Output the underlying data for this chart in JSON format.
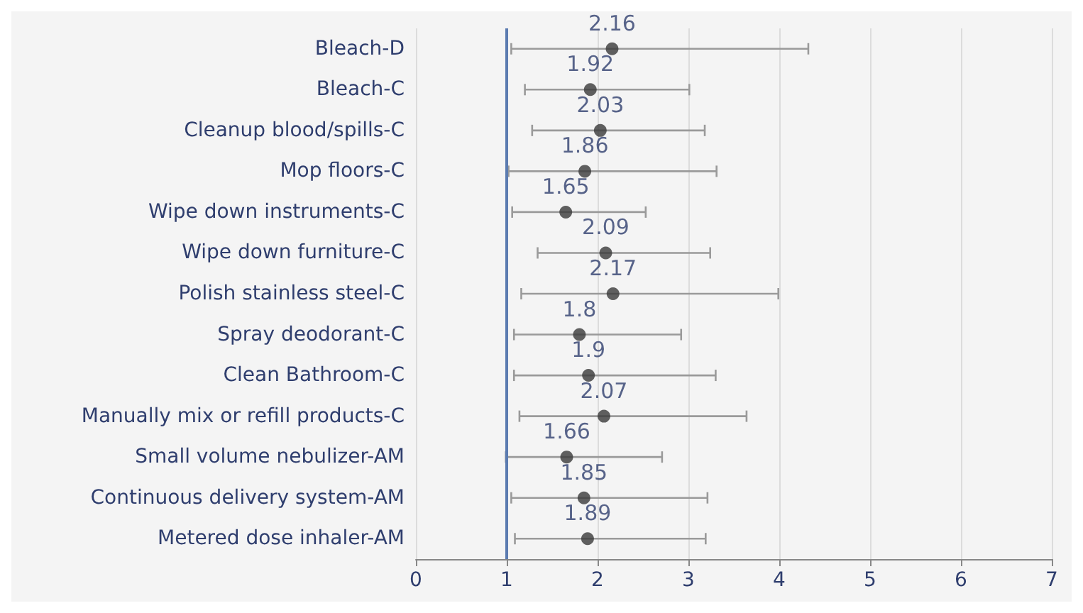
{
  "chart_data": {
    "type": "scatter",
    "orientation": "horizontal",
    "categories": [
      "Bleach-D",
      "Bleach-C",
      "Cleanup blood/spills-C",
      "Mop floors-C",
      "Wipe down instruments-C",
      "Wipe down furniture-C",
      "Polish stainless steel-C",
      "Spray deodorant-C",
      "Clean Bathroom-C",
      "Manually mix or refill products-C",
      "Small volume nebulizer-AM",
      "Continuous delivery system-AM",
      "Metered dose inhaler-AM"
    ],
    "values": [
      2.16,
      1.92,
      2.03,
      1.86,
      1.65,
      2.09,
      2.17,
      1.8,
      1.9,
      2.07,
      1.66,
      1.85,
      1.89
    ],
    "errors": [
      [
        1.05,
        4.32
      ],
      [
        1.2,
        3.01
      ],
      [
        1.28,
        3.18
      ],
      [
        1.02,
        3.31
      ],
      [
        1.06,
        2.53
      ],
      [
        1.34,
        3.24
      ],
      [
        1.16,
        3.99
      ],
      [
        1.08,
        2.92
      ],
      [
        1.08,
        3.3
      ],
      [
        1.14,
        3.64
      ],
      [
        0.99,
        2.71
      ],
      [
        1.05,
        3.21
      ],
      [
        1.09,
        3.19
      ]
    ],
    "color": "#3a3a3a",
    "marker": "circle",
    "data_labels": true,
    "xlim": [
      0,
      7
    ],
    "xticks": [
      0,
      1,
      2,
      3,
      4,
      5,
      6,
      7
    ],
    "grid": "x",
    "ref_lines": [
      {
        "axis": "x",
        "value": 1,
        "color": "#5b7bb0"
      }
    ]
  }
}
